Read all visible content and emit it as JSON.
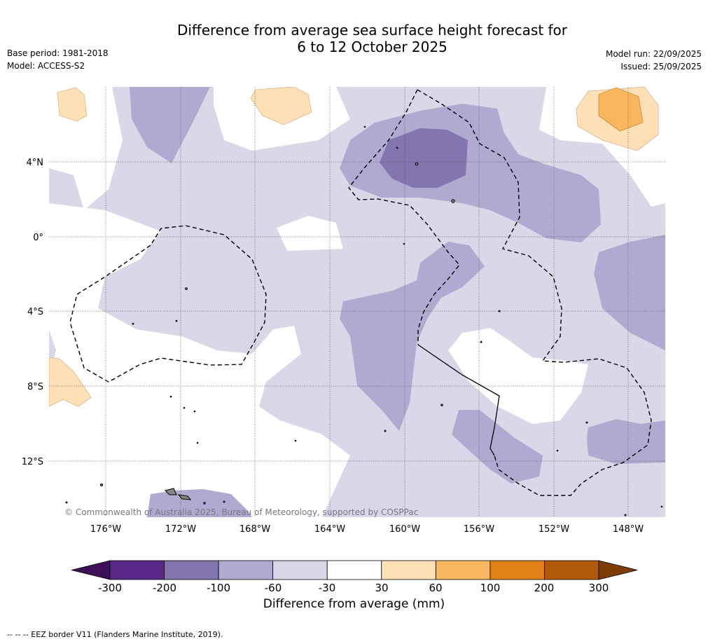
{
  "title": {
    "line1": "Difference from average sea surface height forecast for",
    "line2": "6 to 12 October 2025"
  },
  "meta": {
    "base_period": "Base period: 1981-2018",
    "model": "Model: ACCESS-S2",
    "model_run": "Model run: 22/09/2025",
    "issued": "Issued: 25/09/2025"
  },
  "map": {
    "lat_labels": [
      "4°N",
      "0°",
      "4°S",
      "8°S",
      "12°S"
    ],
    "lon_labels": [
      "176°W",
      "172°W",
      "168°W",
      "164°W",
      "160°W",
      "156°W",
      "152°W",
      "148°W"
    ],
    "credit": "© Commonwealth of Australia 2025, Bureau of Meteorology, supported by COSPPac"
  },
  "colorbar": {
    "label": "Difference from average (mm)",
    "ticks": [
      "-300",
      "-200",
      "-100",
      "-60",
      "-30",
      "30",
      "60",
      "100",
      "200",
      "300"
    ],
    "colors": [
      "#3c0f57",
      "#5a2987",
      "#8375ad",
      "#b0aad0",
      "#d8d8e9",
      "#ffffff",
      "#fee0b6",
      "#f8b65f",
      "#e08218",
      "#b25a0a",
      "#7f3d06"
    ]
  },
  "footer": "--  --  -- EEZ border V11 (Flanders Marine Institute, 2019)."
}
